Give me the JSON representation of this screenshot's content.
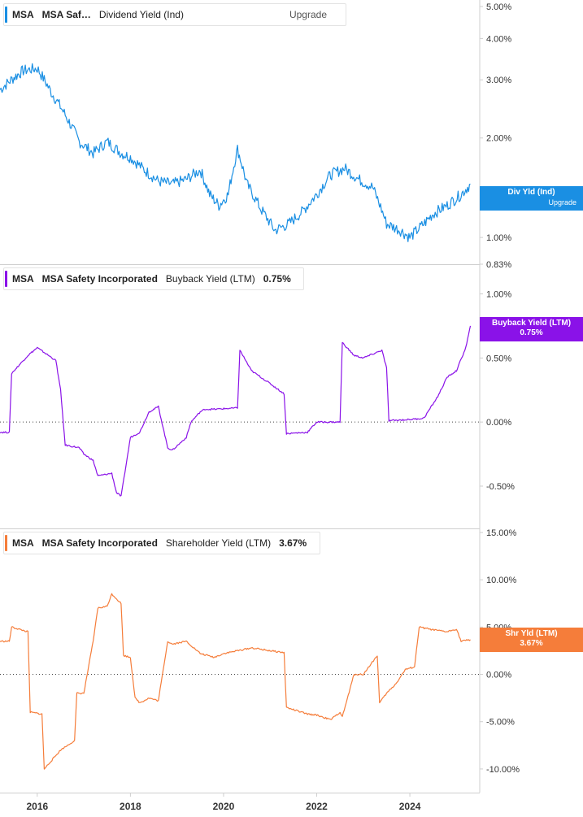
{
  "chart_data": [
    {
      "type": "line",
      "symbol": "MSA",
      "name_short": "MSA Saf…",
      "metric": "Dividend Yield (Ind)",
      "upgrade_label": "Upgrade",
      "tag_label": "Div Yld (Ind)",
      "tag_sub": "Upgrade",
      "color": "#1a8fe3",
      "y_scale": "log",
      "ylim": [
        0.83,
        5.0
      ],
      "yticks": [
        "5.00%",
        "4.00%",
        "3.00%",
        "2.00%",
        "1.00%",
        "0.83%"
      ],
      "ytick_values": [
        5.0,
        4.0,
        3.0,
        2.0,
        1.0,
        0.83
      ],
      "series": [
        {
          "name": "Div Yld (Ind)",
          "x": [
            2015.2,
            2015.5,
            2015.7,
            2016.0,
            2016.3,
            2016.6,
            2016.9,
            2017.2,
            2017.5,
            2017.8,
            2018.0,
            2018.3,
            2018.6,
            2018.9,
            2019.2,
            2019.5,
            2019.7,
            2019.9,
            2020.1,
            2020.3,
            2020.5,
            2020.8,
            2021.1,
            2021.4,
            2021.7,
            2022.0,
            2022.3,
            2022.6,
            2022.9,
            2023.2,
            2023.5,
            2023.8,
            2024.0,
            2024.3,
            2024.5,
            2024.8,
            2025.1,
            2025.3
          ],
          "values": [
            2.8,
            3.05,
            3.2,
            3.25,
            2.75,
            2.35,
            1.95,
            1.8,
            1.95,
            1.8,
            1.75,
            1.6,
            1.48,
            1.45,
            1.5,
            1.6,
            1.35,
            1.25,
            1.35,
            1.85,
            1.45,
            1.22,
            1.05,
            1.1,
            1.2,
            1.35,
            1.55,
            1.62,
            1.5,
            1.42,
            1.1,
            1.05,
            1.0,
            1.1,
            1.18,
            1.25,
            1.35,
            1.45
          ]
        }
      ]
    },
    {
      "type": "line",
      "symbol": "MSA",
      "name": "MSA Safety Incorporated",
      "metric": "Buyback Yield (LTM)",
      "value_label": "0.75%",
      "tag_label": "Buyback Yield (LTM)",
      "tag_value": "0.75%",
      "color": "#8a12e8",
      "ylim": [
        -0.83,
        1.2
      ],
      "yticks": [
        "1.00%",
        "0.50%",
        "0.00%",
        "-0.50%"
      ],
      "ytick_values": [
        1.0,
        0.5,
        0.0,
        -0.5
      ],
      "series": [
        {
          "name": "Buyback Yield (LTM)",
          "x": [
            2015.2,
            2015.4,
            2015.45,
            2015.8,
            2016.0,
            2016.4,
            2016.5,
            2016.6,
            2016.9,
            2017.0,
            2017.2,
            2017.3,
            2017.6,
            2017.7,
            2017.8,
            2018.0,
            2018.2,
            2018.4,
            2018.6,
            2018.8,
            2018.9,
            2019.2,
            2019.3,
            2019.5,
            2019.6,
            2019.8,
            2020.3,
            2020.35,
            2020.6,
            2021.0,
            2021.3,
            2021.35,
            2021.8,
            2022.0,
            2022.5,
            2022.55,
            2022.8,
            2023.0,
            2023.4,
            2023.5,
            2023.55,
            2024.0,
            2024.3,
            2024.6,
            2024.8,
            2025.0,
            2025.2,
            2025.3
          ],
          "values": [
            -0.08,
            -0.08,
            0.38,
            0.52,
            0.58,
            0.48,
            0.25,
            -0.18,
            -0.2,
            -0.25,
            -0.3,
            -0.42,
            -0.4,
            -0.55,
            -0.58,
            -0.12,
            -0.08,
            0.08,
            0.12,
            -0.2,
            -0.22,
            -0.12,
            0.0,
            0.08,
            0.1,
            0.1,
            0.11,
            0.56,
            0.4,
            0.3,
            0.22,
            -0.09,
            -0.08,
            0.0,
            0.0,
            0.62,
            0.52,
            0.5,
            0.56,
            0.42,
            0.01,
            0.02,
            0.03,
            0.2,
            0.35,
            0.4,
            0.58,
            0.75
          ]
        }
      ]
    },
    {
      "type": "line",
      "symbol": "MSA",
      "name": "MSA Safety Incorporated",
      "metric": "Shareholder Yield (LTM)",
      "value_label": "3.67%",
      "tag_label": "Shr Yld (LTM)",
      "tag_value": "3.67%",
      "color": "#f57d3a",
      "ylim": [
        -12.5,
        15.0
      ],
      "yticks": [
        "15.00%",
        "10.00%",
        "5.00%",
        "0.00%",
        "-5.00%",
        "-10.00%"
      ],
      "ytick_values": [
        15.0,
        10.0,
        5.0,
        0.0,
        -5.0,
        -10.0
      ],
      "series": [
        {
          "name": "Shr Yld (LTM)",
          "x": [
            2015.2,
            2015.4,
            2015.45,
            2015.8,
            2015.85,
            2016.1,
            2016.15,
            2016.5,
            2016.8,
            2016.85,
            2017.0,
            2017.2,
            2017.3,
            2017.5,
            2017.6,
            2017.8,
            2017.85,
            2018.0,
            2018.1,
            2018.2,
            2018.4,
            2018.6,
            2018.8,
            2018.9,
            2019.2,
            2019.5,
            2019.8,
            2020.0,
            2020.3,
            2020.6,
            2021.0,
            2021.3,
            2021.35,
            2021.8,
            2022.0,
            2022.3,
            2022.5,
            2022.55,
            2022.8,
            2023.0,
            2023.3,
            2023.35,
            2023.5,
            2023.7,
            2023.9,
            2024.1,
            2024.2,
            2024.5,
            2024.8,
            2025.0,
            2025.1,
            2025.3
          ],
          "values": [
            3.5,
            3.5,
            5.0,
            4.5,
            -4.0,
            -4.2,
            -10.0,
            -8.0,
            -7.0,
            -2.0,
            -2.0,
            3.5,
            7.0,
            7.2,
            8.5,
            7.5,
            2.0,
            1.8,
            -2.5,
            -3.0,
            -2.5,
            -2.8,
            3.5,
            3.2,
            3.5,
            2.2,
            1.8,
            2.2,
            2.5,
            2.8,
            2.5,
            2.3,
            -3.5,
            -4.2,
            -4.3,
            -4.8,
            -4.0,
            -4.5,
            0.0,
            0.0,
            2.0,
            -3.0,
            -2.0,
            -1.0,
            0.5,
            0.8,
            5.0,
            4.7,
            4.5,
            4.8,
            3.5,
            3.67
          ]
        }
      ]
    }
  ],
  "x_axis": {
    "xlim": [
      2015.2,
      2025.5
    ],
    "ticks": [
      "2016",
      "2018",
      "2020",
      "2022",
      "2024"
    ],
    "tick_values": [
      2016,
      2018,
      2020,
      2022,
      2024
    ]
  }
}
